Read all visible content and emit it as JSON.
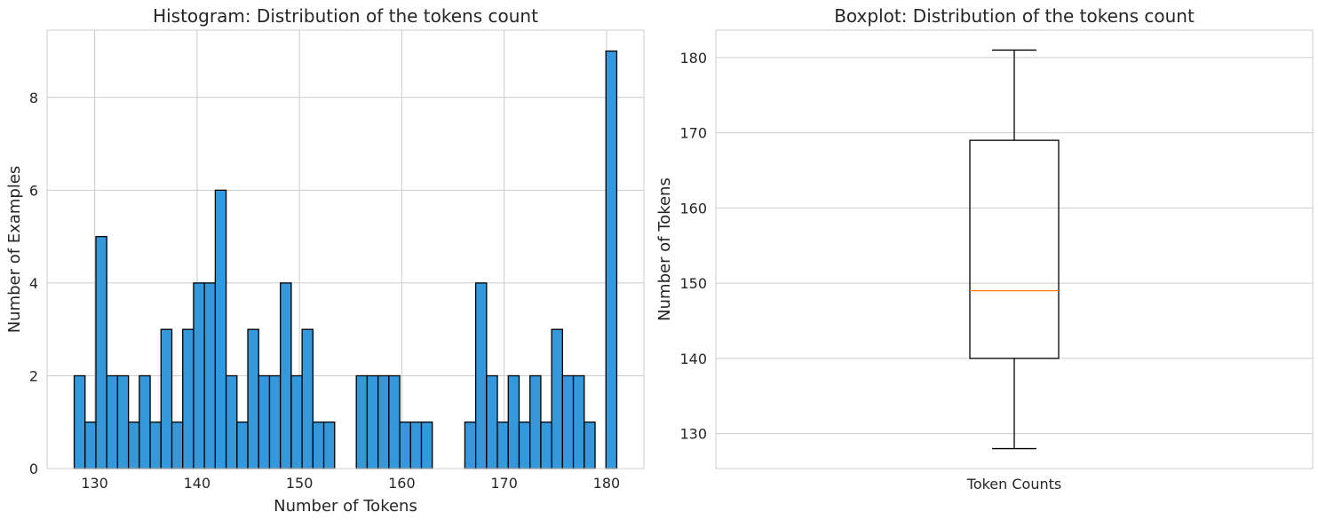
{
  "chart_data": [
    {
      "type": "bar",
      "subtype": "histogram",
      "title": "Histogram: Distribution of the tokens count",
      "xlabel": "Number of Tokens",
      "ylabel": "Number of Examples",
      "xlim": [
        125.35,
        183.65
      ],
      "ylim": [
        0,
        9.45
      ],
      "bin_start": 128,
      "bin_width": 1.06,
      "counts": [
        2,
        1,
        5,
        2,
        2,
        1,
        2,
        1,
        3,
        1,
        3,
        4,
        4,
        6,
        2,
        1,
        3,
        2,
        2,
        4,
        2,
        3,
        1,
        1,
        0,
        0,
        2,
        2,
        2,
        2,
        1,
        1,
        1,
        0,
        0,
        0,
        1,
        4,
        2,
        1,
        2,
        1,
        2,
        1,
        3,
        2,
        2,
        1,
        0,
        9
      ],
      "xticks": [
        130,
        140,
        150,
        160,
        170,
        180
      ],
      "yticks": [
        0,
        2,
        4,
        6,
        8
      ],
      "bar_color": "#3498db",
      "edge_color": "#000000",
      "grid": true
    },
    {
      "type": "box",
      "title": "Boxplot: Distribution of the tokens count",
      "xlabel": "",
      "ylabel": "Number of Tokens",
      "category": "Token Counts",
      "ylim": [
        125.35,
        183.65
      ],
      "whisker_low": 128,
      "q1": 140,
      "median": 149,
      "q3": 169,
      "whisker_high": 181,
      "yticks": [
        130,
        140,
        150,
        160,
        170,
        180
      ],
      "median_color": "#ff7f0e",
      "box_color": "#000000",
      "grid": true
    }
  ]
}
